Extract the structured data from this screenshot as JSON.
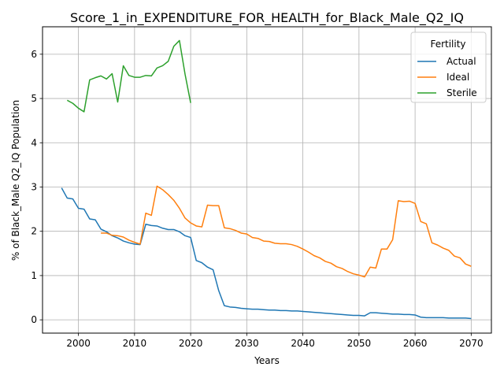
{
  "chart_data": {
    "type": "line",
    "title": "Score_1_in_EXPENDITURE_FOR_HEALTH_for_Black_Male_Q2_IQ",
    "xlabel": "Years",
    "ylabel": "% of Black_Male Q2_IQ Population",
    "xlim": [
      1993.6,
      2073.6
    ],
    "ylim": [
      -0.3,
      6.62
    ],
    "xticks": [
      2000,
      2010,
      2020,
      2030,
      2040,
      2050,
      2060,
      2070
    ],
    "yticks": [
      0,
      1,
      2,
      3,
      4,
      5,
      6
    ],
    "grid": true,
    "legend": {
      "title": "Fertility",
      "placement": "top-right"
    },
    "series": [
      {
        "name": "Actual",
        "color": "#1f77b4",
        "points": [
          [
            1997,
            2.98
          ],
          [
            1998,
            2.75
          ],
          [
            1999,
            2.73
          ],
          [
            2000,
            2.52
          ],
          [
            2001,
            2.5
          ],
          [
            2002,
            2.28
          ],
          [
            2003,
            2.26
          ],
          [
            2004,
            2.05
          ],
          [
            2005,
            1.99
          ],
          [
            2006,
            1.9
          ],
          [
            2007,
            1.85
          ],
          [
            2008,
            1.78
          ],
          [
            2009,
            1.74
          ],
          [
            2010,
            1.71
          ],
          [
            2011,
            1.7
          ],
          [
            2012,
            2.16
          ],
          [
            2013,
            2.13
          ],
          [
            2014,
            2.12
          ],
          [
            2015,
            2.07
          ],
          [
            2016,
            2.04
          ],
          [
            2017,
            2.04
          ],
          [
            2018,
            1.99
          ],
          [
            2019,
            1.9
          ],
          [
            2020,
            1.86
          ],
          [
            2021,
            1.34
          ],
          [
            2022,
            1.29
          ],
          [
            2023,
            1.19
          ],
          [
            2024,
            1.13
          ],
          [
            2025,
            0.66
          ],
          [
            2026,
            0.32
          ],
          [
            2027,
            0.29
          ],
          [
            2028,
            0.28
          ],
          [
            2029,
            0.26
          ],
          [
            2030,
            0.25
          ],
          [
            2031,
            0.24
          ],
          [
            2032,
            0.24
          ],
          [
            2033,
            0.23
          ],
          [
            2034,
            0.22
          ],
          [
            2035,
            0.22
          ],
          [
            2036,
            0.21
          ],
          [
            2037,
            0.21
          ],
          [
            2038,
            0.2
          ],
          [
            2039,
            0.2
          ],
          [
            2040,
            0.19
          ],
          [
            2041,
            0.18
          ],
          [
            2042,
            0.17
          ],
          [
            2043,
            0.16
          ],
          [
            2044,
            0.15
          ],
          [
            2045,
            0.14
          ],
          [
            2046,
            0.13
          ],
          [
            2047,
            0.12
          ],
          [
            2048,
            0.11
          ],
          [
            2049,
            0.1
          ],
          [
            2050,
            0.1
          ],
          [
            2051,
            0.09
          ],
          [
            2052,
            0.16
          ],
          [
            2053,
            0.16
          ],
          [
            2054,
            0.15
          ],
          [
            2055,
            0.14
          ],
          [
            2056,
            0.13
          ],
          [
            2057,
            0.13
          ],
          [
            2058,
            0.12
          ],
          [
            2059,
            0.12
          ],
          [
            2060,
            0.11
          ],
          [
            2061,
            0.06
          ],
          [
            2062,
            0.05
          ],
          [
            2063,
            0.05
          ],
          [
            2064,
            0.05
          ],
          [
            2065,
            0.05
          ],
          [
            2066,
            0.04
          ],
          [
            2067,
            0.04
          ],
          [
            2068,
            0.04
          ],
          [
            2069,
            0.04
          ],
          [
            2070,
            0.03
          ]
        ]
      },
      {
        "name": "Ideal",
        "color": "#ff7f0e",
        "points": [
          [
            2004,
            1.96
          ],
          [
            2005,
            1.96
          ],
          [
            2006,
            1.91
          ],
          [
            2007,
            1.9
          ],
          [
            2008,
            1.87
          ],
          [
            2009,
            1.8
          ],
          [
            2010,
            1.75
          ],
          [
            2011,
            1.71
          ],
          [
            2012,
            2.41
          ],
          [
            2013,
            2.36
          ],
          [
            2014,
            3.02
          ],
          [
            2015,
            2.94
          ],
          [
            2016,
            2.83
          ],
          [
            2017,
            2.7
          ],
          [
            2018,
            2.52
          ],
          [
            2019,
            2.3
          ],
          [
            2020,
            2.19
          ],
          [
            2021,
            2.12
          ],
          [
            2022,
            2.1
          ],
          [
            2023,
            2.59
          ],
          [
            2024,
            2.58
          ],
          [
            2025,
            2.58
          ],
          [
            2026,
            2.08
          ],
          [
            2027,
            2.06
          ],
          [
            2028,
            2.02
          ],
          [
            2029,
            1.96
          ],
          [
            2030,
            1.94
          ],
          [
            2031,
            1.86
          ],
          [
            2032,
            1.84
          ],
          [
            2033,
            1.78
          ],
          [
            2034,
            1.77
          ],
          [
            2035,
            1.73
          ],
          [
            2036,
            1.72
          ],
          [
            2037,
            1.72
          ],
          [
            2038,
            1.7
          ],
          [
            2039,
            1.66
          ],
          [
            2040,
            1.6
          ],
          [
            2041,
            1.53
          ],
          [
            2042,
            1.45
          ],
          [
            2043,
            1.4
          ],
          [
            2044,
            1.32
          ],
          [
            2045,
            1.28
          ],
          [
            2046,
            1.2
          ],
          [
            2047,
            1.16
          ],
          [
            2048,
            1.09
          ],
          [
            2049,
            1.04
          ],
          [
            2050,
            1.01
          ],
          [
            2051,
            0.97
          ],
          [
            2052,
            1.19
          ],
          [
            2053,
            1.17
          ],
          [
            2054,
            1.6
          ],
          [
            2055,
            1.6
          ],
          [
            2056,
            1.81
          ],
          [
            2057,
            2.69
          ],
          [
            2058,
            2.67
          ],
          [
            2059,
            2.68
          ],
          [
            2060,
            2.63
          ],
          [
            2061,
            2.22
          ],
          [
            2062,
            2.17
          ],
          [
            2063,
            1.74
          ],
          [
            2064,
            1.69
          ],
          [
            2065,
            1.62
          ],
          [
            2066,
            1.57
          ],
          [
            2067,
            1.44
          ],
          [
            2068,
            1.4
          ],
          [
            2069,
            1.26
          ],
          [
            2070,
            1.21
          ]
        ]
      },
      {
        "name": "Sterile",
        "color": "#2ca02c",
        "points": [
          [
            1998,
            4.96
          ],
          [
            1999,
            4.89
          ],
          [
            2000,
            4.78
          ],
          [
            2001,
            4.7
          ],
          [
            2002,
            5.42
          ],
          [
            2003,
            5.47
          ],
          [
            2004,
            5.51
          ],
          [
            2005,
            5.44
          ],
          [
            2006,
            5.56
          ],
          [
            2007,
            4.92
          ],
          [
            2008,
            5.74
          ],
          [
            2009,
            5.52
          ],
          [
            2010,
            5.48
          ],
          [
            2011,
            5.48
          ],
          [
            2012,
            5.52
          ],
          [
            2013,
            5.51
          ],
          [
            2014,
            5.69
          ],
          [
            2015,
            5.74
          ],
          [
            2016,
            5.84
          ],
          [
            2017,
            6.18
          ],
          [
            2018,
            6.31
          ],
          [
            2019,
            5.55
          ],
          [
            2020,
            4.9
          ]
        ]
      }
    ]
  }
}
